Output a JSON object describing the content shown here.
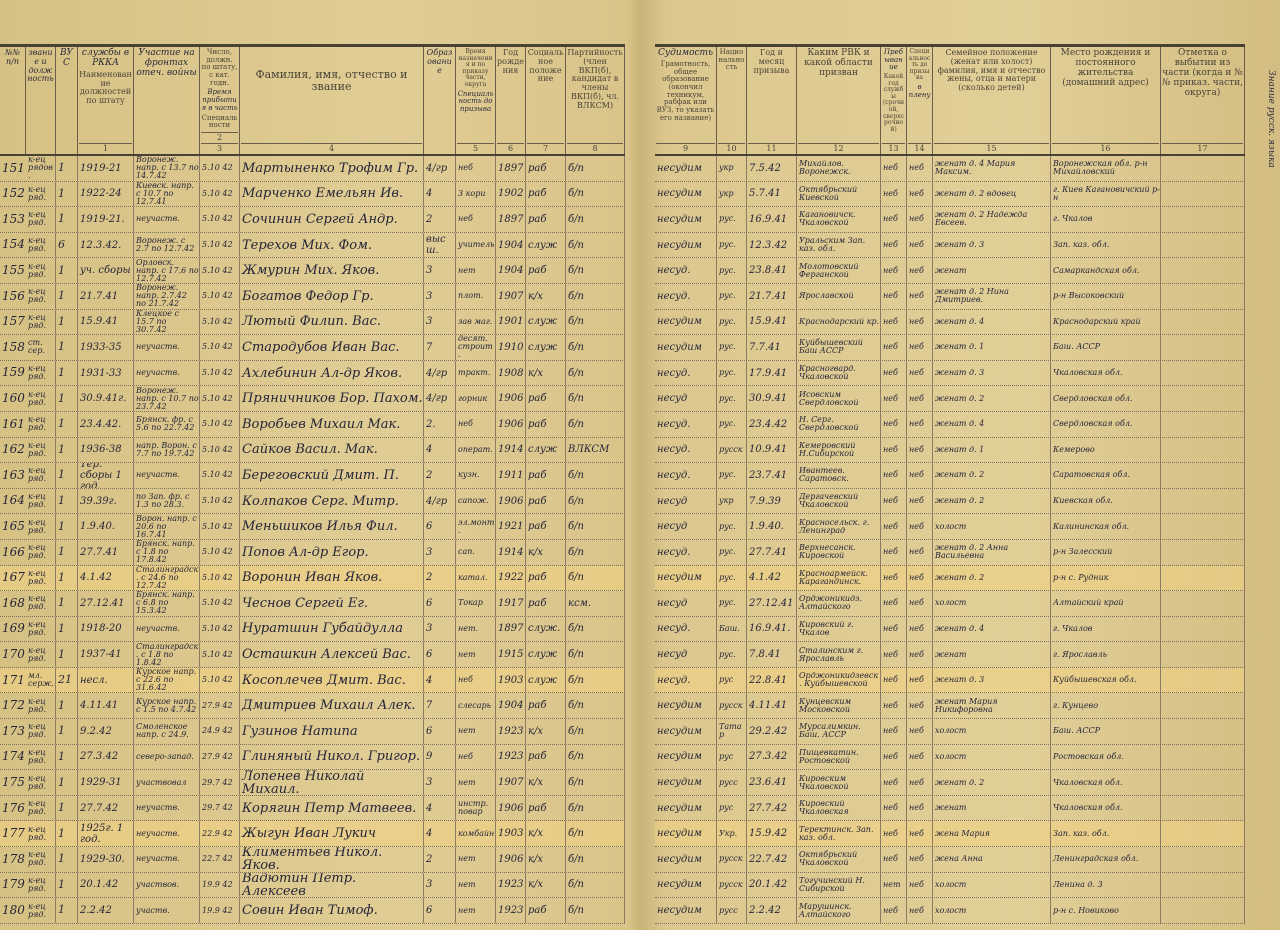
{
  "left_header": {
    "c_rownum": "№№ п/п",
    "c_rank": "звание и должность",
    "c_vus": "ВУС",
    "c1_printed": "Наименование должностей по штату",
    "c1_hand": "службы в РККА",
    "c1b_hand": "Участие на фронтах отеч. войны",
    "c2_printed": "Число, должн. по штату, с кат. годн.",
    "c3_printed": "Специальности",
    "c3_hand": "Время прибытия в часть",
    "c4": "Фамилия, имя, отчество и звание",
    "c5_printed": "Время назначения и по приказу части, округа",
    "c5_hand": "Образование",
    "c5b_hand": "Специальность до призыва",
    "c6": "Год рождения",
    "c7": "Социальное положение",
    "c8": "Партийность (член ВКП(б), кандидат в члены ВКП(б), чл. ВЛКСМ)",
    "nums": [
      "1",
      "2",
      "3",
      "4",
      "5",
      "6",
      "7",
      "8"
    ]
  },
  "right_header": {
    "c9": "Грамотность, общее образование (окончил техникум, рабфак или ВУЗ, то указать его название)",
    "c9_hand": "Судимость",
    "c10": "Национальность",
    "c11": "Год и месяц призыва",
    "c12": "Каким РВК и какой области призван",
    "c13": "Какой год службы (срочной, сверхсрочной)",
    "c13_hand": "Пребывание",
    "c14": "Специальность до призыва",
    "c14_hand": "в плену",
    "c15": "Семейное положение (женат или холост) фамилия, имя и отчество жены, отца и матери (сколько детей)",
    "c16": "Место рождения и постоянного жительства (домашний адрес)",
    "c17": "Отметка о выбытии из части (когда и №№ приказ. части, округа)",
    "nums": [
      "9",
      "10",
      "11",
      "12",
      "13",
      "14",
      "15",
      "16",
      "17"
    ],
    "margin_note": "Знание русск. языка"
  },
  "rows": [
    {
      "n": "151",
      "rank": "к-ец рядов.",
      "vus": "1",
      "svc": "1919-21",
      "front": "Воронеж. напр. с 13.7 по 14.7.42",
      "arr": "5.10 42",
      "name": "Мартыненко Трофим Гр.",
      "edu": "4/гр",
      "spec": "неб",
      "yr": "1897",
      "soc": "раб",
      "party": "б/п",
      "crim": "несудим",
      "nat": "укр",
      "call": "7.5.42",
      "rvk": "Михайлов. Воронежск.",
      "y13": "неб",
      "pow": "неб",
      "fam": "женат д. 4 Мария Максим.",
      "addr": "Воронежская обл. р-н Михайловский"
    },
    {
      "n": "152",
      "rank": "к-ец ряд.",
      "vus": "1",
      "svc": "1922-24",
      "front": "Киевск. напр. с 10.7 по 12.7.41",
      "arr": "5.10 42",
      "name": "Марченко Емельян Ив.",
      "edu": "4",
      "spec": "3 кори",
      "yr": "1902",
      "soc": "раб",
      "party": "б/п",
      "crim": "несудим",
      "nat": "укр",
      "call": "5.7.41",
      "rvk": "Октябрьский Киевской",
      "y13": "неб",
      "pow": "неб",
      "fam": "женат д. 2 вдовец",
      "addr": "г. Киев Кагановичский р-н"
    },
    {
      "n": "153",
      "rank": "к-ец ряд.",
      "vus": "1",
      "svc": "1919-21.",
      "front": "неучаств.",
      "arr": "5.10 42",
      "name": "Сочинин Сергей Андр.",
      "edu": "2",
      "spec": "неб",
      "yr": "1897",
      "soc": "раб",
      "party": "б/п",
      "crim": "несудим",
      "nat": "рус.",
      "call": "16.9.41",
      "rvk": "Кагановичск. Чкаловской",
      "y13": "неб",
      "pow": "неб",
      "fam": "женат д. 2 Надежда Евсеев.",
      "addr": "г. Чкалов"
    },
    {
      "n": "154",
      "rank": "к-ец ряд.",
      "vus": "6",
      "svc": "12.3.42.",
      "front": "Воронеж. с 2.7 по 12.7.42",
      "arr": "5.10 42",
      "name": "Терехов Мих. Фом.",
      "edu": "высш.",
      "spec": "учитель",
      "yr": "1904",
      "soc": "служ",
      "party": "б/п",
      "crim": "несудим",
      "nat": "рус.",
      "call": "12.3.42",
      "rvk": "Уральским Зап. каз. обл.",
      "y13": "неб",
      "pow": "неб",
      "fam": "женат д. 3",
      "addr": "Зап. каз. обл."
    },
    {
      "n": "155",
      "rank": "к-ец ряд.",
      "vus": "1",
      "svc": "уч. сборы",
      "front": "Орловск. напр. с 17.6 по 12.7.42",
      "arr": "5.10 42",
      "name": "Жмурин Мих. Яков.",
      "edu": "3",
      "spec": "нет",
      "yr": "1904",
      "soc": "раб",
      "party": "б/п",
      "crim": "несуд.",
      "nat": "рус.",
      "call": "23.8.41",
      "rvk": "Молотовский Ферганской",
      "y13": "неб",
      "pow": "неб",
      "fam": "женат",
      "addr": "Самаркандская обл."
    },
    {
      "n": "156",
      "rank": "к-ец ряд.",
      "vus": "1",
      "svc": "21.7.41",
      "front": "Воронеж. напр. 2.7.42 по 21.7.42",
      "arr": "5.10 42",
      "name": "Богатов Федор Гр.",
      "edu": "3",
      "spec": "плот.",
      "yr": "1907",
      "soc": "к/х",
      "party": "б/п",
      "crim": "несуд.",
      "nat": "рус.",
      "call": "21.7.41",
      "rvk": "Ярославской",
      "y13": "неб",
      "pow": "неб",
      "fam": "женат д. 2 Нина Дмитриев.",
      "addr": "р-н Высоковский"
    },
    {
      "n": "157",
      "rank": "к-ец ряд.",
      "vus": "1",
      "svc": "15.9.41",
      "front": "Клецкое с 15.7 по 30.7.42",
      "arr": "5.10 42",
      "name": "Лютый Филип. Вас.",
      "edu": "3",
      "spec": "зав маг.",
      "yr": "1901",
      "soc": "служ",
      "party": "б/п",
      "crim": "несудим",
      "nat": "рус.",
      "call": "15.9.41",
      "rvk": "Краснодарский кр.",
      "y13": "неб",
      "pow": "неб",
      "fam": "женат д. 4",
      "addr": "Краснодарский край"
    },
    {
      "n": "158",
      "rank": "ст. сер.",
      "vus": "1",
      "svc": "1933-35",
      "front": "неучаств.",
      "arr": "5.10 42",
      "name": "Стародубов Иван Вас.",
      "edu": "7",
      "spec": "десят. строит.",
      "yr": "1910",
      "soc": "служ",
      "party": "б/п",
      "crim": "несудим",
      "nat": "рус.",
      "call": "7.7.41",
      "rvk": "Куйбышевский Баш АССР",
      "y13": "неб",
      "pow": "неб",
      "fam": "женат д. 1",
      "addr": "Баш. АССР"
    },
    {
      "n": "159",
      "rank": "к-ец ряд.",
      "vus": "1",
      "svc": "1931-33",
      "front": "неучаств.",
      "arr": "5.10 42",
      "name": "Ахлебинин Ал-др Яков.",
      "edu": "4/гр",
      "spec": "тракт.",
      "yr": "1908",
      "soc": "к/х",
      "party": "б/п",
      "crim": "несуд.",
      "nat": "рус.",
      "call": "17.9.41",
      "rvk": "Красногвард. Чкаловской",
      "y13": "неб",
      "pow": "неб",
      "fam": "женат д. 3",
      "addr": "Чкаловская обл."
    },
    {
      "n": "160",
      "rank": "к-ец ряд.",
      "vus": "1",
      "svc": "30.9.41г.",
      "front": "Воронеж. напр. с 10.7 по 23.7.42",
      "arr": "5.10 42",
      "name": "Пряничников Бор. Пахом.",
      "edu": "4/гр",
      "spec": "горник",
      "yr": "1906",
      "soc": "раб",
      "party": "б/п",
      "crim": "несуд",
      "nat": "рус.",
      "call": "30.9.41",
      "rvk": "Исовским Свердловской",
      "y13": "неб",
      "pow": "неб",
      "fam": "женат д. 2",
      "addr": "Свердловская обл."
    },
    {
      "n": "161",
      "rank": "к-ец ряд.",
      "vus": "1",
      "svc": "23.4.42.",
      "front": "Брянск. фр. с 5.6 по 22.7.42",
      "arr": "5.10 42",
      "name": "Воробьев Михаил Мак.",
      "edu": "2.",
      "spec": "неб",
      "yr": "1906",
      "soc": "раб",
      "party": "б/п",
      "crim": "несуд.",
      "nat": "рус.",
      "call": "23.4.42",
      "rvk": "Н. Серг. Свердловской",
      "y13": "неб",
      "pow": "неб",
      "fam": "женат д. 4",
      "addr": "Свердловская обл."
    },
    {
      "n": "162",
      "rank": "к-ец ряд.",
      "vus": "1",
      "svc": "1936-38",
      "front": "напр. Ворон. с 7.7 по 19.7.42",
      "arr": "5.10 42",
      "name": "Сайков Васил. Мак.",
      "edu": "4",
      "spec": "операт.",
      "yr": "1914",
      "soc": "служ",
      "party": "ВЛКСМ",
      "crim": "несуд.",
      "nat": "русск",
      "call": "10.9.41",
      "rvk": "Кемеровский Н.Сибирской",
      "y13": "неб",
      "pow": "неб",
      "fam": "женат д. 1",
      "addr": "Кемерово"
    },
    {
      "n": "163",
      "rank": "к-ец ряд.",
      "vus": "1",
      "svc": "Тер. сборы 1 год.",
      "front": "неучаств.",
      "arr": "5.10 42",
      "name": "Береговский Дмит. П.",
      "edu": "2",
      "spec": "кузн.",
      "yr": "1911",
      "soc": "раб",
      "party": "б/п",
      "crim": "несуд.",
      "nat": "рус.",
      "call": "23.7.41",
      "rvk": "Ивантеев. Саратовск.",
      "y13": "неб",
      "pow": "неб",
      "fam": "женат д. 2",
      "addr": "Саратовская обл."
    },
    {
      "n": "164",
      "rank": "к-ец ряд.",
      "vus": "1",
      "svc": "39.39г.",
      "front": "по Зап. фр. с 1.3 по 28.3.",
      "arr": "5.10 42",
      "name": "Колпаков Серг. Митр.",
      "edu": "4/гр",
      "spec": "сапож.",
      "yr": "1906",
      "soc": "раб",
      "party": "б/п",
      "crim": "несуд",
      "nat": "укр",
      "call": "7.9.39",
      "rvk": "Дергачевский Чкаловской",
      "y13": "неб",
      "pow": "неб",
      "fam": "женат д. 2",
      "addr": "Киевская обл."
    },
    {
      "n": "165",
      "rank": "к-ец ряд.",
      "vus": "1",
      "svc": "1.9.40.",
      "front": "Ворон. напр. с 20.6 по 16.7.41",
      "arr": "5.10 42",
      "name": "Меньшиков Илья Фил.",
      "edu": "6",
      "spec": "эл.монт.",
      "yr": "1921",
      "soc": "раб",
      "party": "б/п",
      "crim": "несуд",
      "nat": "рус.",
      "call": "1.9.40.",
      "rvk": "Красносельск. г. Ленинград",
      "y13": "неб",
      "pow": "неб",
      "fam": "холост",
      "addr": "Калининская обл."
    },
    {
      "n": "166",
      "rank": "к-ец ряд.",
      "vus": "1",
      "svc": "27.7.41",
      "front": "Брянск. напр. с 1.8 по 17.8.42",
      "arr": "5.10 42",
      "name": "Попов Ал-др Егор.",
      "edu": "3",
      "spec": "сап.",
      "yr": "1914",
      "soc": "к/х",
      "party": "б/п",
      "crim": "несуд.",
      "nat": "рус.",
      "call": "27.7.41",
      "rvk": "Верхнесанск. Кировской",
      "y13": "неб",
      "pow": "неб",
      "fam": "женат д. 2 Анна Васильевна",
      "addr": "р-н Залесский"
    },
    {
      "n": "167",
      "rank": "к-ец ряд.",
      "vus": "1",
      "svc": "4.1.42",
      "front": "Сталинградск. с 24.6 по 12.7.42",
      "arr": "5.10 42",
      "name": "Воронин Иван Яков.",
      "edu": "2",
      "spec": "катал.",
      "yr": "1922",
      "soc": "раб",
      "party": "б/п",
      "crim": "несудим",
      "nat": "рус.",
      "call": "4.1.42",
      "rvk": "Красноармейск. Карагандинск.",
      "y13": "неб",
      "pow": "неб",
      "fam": "женат д. 2",
      "addr": "р-н с. Рудник"
    },
    {
      "n": "168",
      "rank": "к-ец ряд.",
      "vus": "1",
      "svc": "27.12.41",
      "front": "Брянск. напр. с 6.8 по 15.3.42",
      "arr": "5.10 42",
      "name": "Чеснов Сергей Ег.",
      "edu": "6",
      "spec": "Токар",
      "yr": "1917",
      "soc": "раб",
      "party": "ксм.",
      "crim": "несуд",
      "nat": "рус.",
      "call": "27.12.41",
      "rvk": "Орджоникидз. Алтайского",
      "y13": "неб",
      "pow": "неб",
      "fam": "холост",
      "addr": "Алтайский край"
    },
    {
      "n": "169",
      "rank": "к-ец ряд.",
      "vus": "1",
      "svc": "1918-20",
      "front": "неучаств.",
      "arr": "5.10 42",
      "name": "Нуратшин Губайдулла",
      "edu": "3",
      "spec": "нет.",
      "yr": "1897",
      "soc": "служ.",
      "party": "б/п",
      "crim": "несуд.",
      "nat": "Баш.",
      "call": "16.9.41.",
      "rvk": "Кировский г. Чкалов",
      "y13": "неб",
      "pow": "неб",
      "fam": "женат д. 4",
      "addr": "г. Чкалов"
    },
    {
      "n": "170",
      "rank": "к-ец ряд.",
      "vus": "1",
      "svc": "1937-41",
      "front": "Сталинградск. с 1.8 по 1.8.42",
      "arr": "5.10 42",
      "name": "Осташкин Алексей Вас.",
      "edu": "6",
      "spec": "нет",
      "yr": "1915",
      "soc": "служ",
      "party": "б/п",
      "crim": "несуд",
      "nat": "рус.",
      "call": "7.8.41",
      "rvk": "Сталинским г. Ярославль",
      "y13": "неб",
      "pow": "неб",
      "fam": "женат",
      "addr": "г. Ярославль"
    },
    {
      "n": "171",
      "rank": "мл. серж.",
      "vus": "21",
      "svc": "несл.",
      "front": "Курское напр. с 22.6 по 31.6.42",
      "arr": "5.10 42",
      "name": "Косоплечев Дмит. Вас.",
      "edu": "4",
      "spec": "неб",
      "yr": "1903",
      "soc": "служ",
      "party": "б/п",
      "crim": "несуд.",
      "nat": "рус",
      "call": "22.8.41",
      "rvk": "Орджоникидзевск. Куйбышевской",
      "y13": "неб",
      "pow": "неб",
      "fam": "женат д. 3",
      "addr": "Куйбышевская обл."
    },
    {
      "n": "172",
      "rank": "к-ец ряд.",
      "vus": "1",
      "svc": "4.11.41",
      "front": "Курское напр. с 1.5 по 4.7.42",
      "arr": "27.9 42",
      "name": "Дмитриев Михаил Алек.",
      "edu": "7",
      "spec": "слесарь",
      "yr": "1904",
      "soc": "раб",
      "party": "б/п",
      "crim": "несудим",
      "nat": "русск",
      "call": "4.11.41",
      "rvk": "Кунцевским Московской",
      "y13": "неб",
      "pow": "неб",
      "fam": "женат Мария Никифоровна",
      "addr": "г. Кунцево"
    },
    {
      "n": "173",
      "rank": "к-ец ряд.",
      "vus": "1",
      "svc": "9.2.42",
      "front": "Смоленское напр. с 24.9.",
      "arr": "24.9 42",
      "name": "Гузинов Натипа",
      "edu": "6",
      "spec": "нет",
      "yr": "1923",
      "soc": "к/х",
      "party": "б/п",
      "crim": "несудим",
      "nat": "Татар",
      "call": "29.2.42",
      "rvk": "Мурсалимкин. Баш. АССР",
      "y13": "неб",
      "pow": "неб",
      "fam": "холост",
      "addr": "Баш. АССР"
    },
    {
      "n": "174",
      "rank": "к-ец ряд.",
      "vus": "1",
      "svc": "27.3.42",
      "front": "северо-запад.",
      "arr": "27.9 42",
      "name": "Глиняный Никол. Григор.",
      "edu": "9",
      "spec": "неб",
      "yr": "1923",
      "soc": "раб",
      "party": "б/п",
      "crim": "несудим",
      "nat": "рус",
      "call": "27.3.42",
      "rvk": "Пищевкатин. Ростовской",
      "y13": "неб",
      "pow": "неб",
      "fam": "холост",
      "addr": "Ростовская обл."
    },
    {
      "n": "175",
      "rank": "к-ец ряд.",
      "vus": "1",
      "svc": "1929-31",
      "front": "участвовал",
      "arr": "29.7 42",
      "name": "Лопенев Николай Михаил.",
      "edu": "3",
      "spec": "нет",
      "yr": "1907",
      "soc": "к/х",
      "party": "б/п",
      "crim": "несудим",
      "nat": "русс",
      "call": "23.6.41",
      "rvk": "Кировским Чкаловской",
      "y13": "неб",
      "pow": "неб",
      "fam": "женат д. 2",
      "addr": "Чкаловская обл."
    },
    {
      "n": "176",
      "rank": "к-ец ряд.",
      "vus": "1",
      "svc": "27.7.42",
      "front": "неучаств.",
      "arr": "29.7 42",
      "name": "Корягин Петр Матвеев.",
      "edu": "4",
      "spec": "инстр. повар",
      "yr": "1906",
      "soc": "раб",
      "party": "б/п",
      "crim": "несудим",
      "nat": "рус",
      "call": "27.7.42",
      "rvk": "Кировский Чкаловская",
      "y13": "неб",
      "pow": "неб",
      "fam": "женат",
      "addr": "Чкаловская обл."
    },
    {
      "n": "177",
      "rank": "к-ец ряд.",
      "vus": "1",
      "svc": "1925г. 1 год.",
      "front": "неучаств.",
      "arr": "22.9 42",
      "name": "Жыгун Иван Лукич",
      "edu": "4",
      "spec": "комбайн",
      "yr": "1903",
      "soc": "к/х",
      "party": "б/п",
      "crim": "несудим",
      "nat": "Укр.",
      "call": "15.9.42",
      "rvk": "Теректинск. Зап. каз. обл.",
      "y13": "неб",
      "pow": "неб",
      "fam": "жена Мария",
      "addr": "Зап. каз. обл."
    },
    {
      "n": "178",
      "rank": "к-ец ряд.",
      "vus": "1",
      "svc": "1929-30.",
      "front": "неучаств.",
      "arr": "22.7 42",
      "name": "Климентьев Никол. Яков.",
      "edu": "2",
      "spec": "нет",
      "yr": "1906",
      "soc": "к/х",
      "party": "б/п",
      "crim": "несудим",
      "nat": "русск",
      "call": "22.7.42",
      "rvk": "Октябрьский Чкаловской",
      "y13": "неб",
      "pow": "неб",
      "fam": "жена Анна",
      "addr": "Ленинградская обл."
    },
    {
      "n": "179",
      "rank": "к-ец ряд.",
      "vus": "1",
      "svc": "20.1.42",
      "front": "участвов.",
      "arr": "19.9 42",
      "name": "Вадютин Петр. Алексеев",
      "edu": "3",
      "spec": "нет",
      "yr": "1923",
      "soc": "к/х",
      "party": "б/п",
      "crim": "несудим",
      "nat": "русск",
      "call": "20.1.42",
      "rvk": "Тогучинский Н. Сибирской",
      "y13": "нет",
      "pow": "неб",
      "fam": "холост",
      "addr": "Ленина д. 3"
    },
    {
      "n": "180",
      "rank": "к-ец ряд.",
      "vus": "1",
      "svc": "2.2.42",
      "front": "участв.",
      "arr": "19.9 42",
      "name": "Совин Иван Тимоф.",
      "edu": "6",
      "spec": "нет",
      "yr": "1923",
      "soc": "раб",
      "party": "б/п",
      "crim": "несудим",
      "nat": "русс",
      "call": "2.2.42",
      "rvk": "Марушинск. Алтайского",
      "y13": "неб",
      "pow": "неб",
      "fam": "холост",
      "addr": "р-н с. Новиково"
    }
  ],
  "highlight_rows": [
    "167",
    "171",
    "177"
  ],
  "colors": {
    "paper": "#dcc88f",
    "ink": "#262538",
    "print": "#4b4437"
  }
}
